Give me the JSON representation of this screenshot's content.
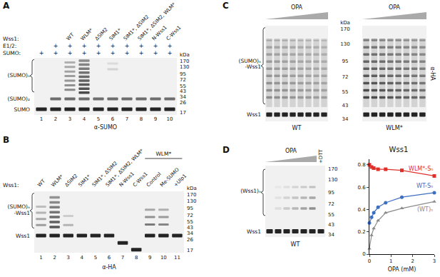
{
  "panels": {
    "A": {
      "label": "A",
      "wss1_label": "Wss1:",
      "wss1": [
        null,
        null,
        "WT",
        "WLM*",
        "ΔSIM2",
        "SIM1*",
        "SIM1*, ΔSIM2",
        "SIM1*, ΔSIM2, WLM*",
        "N-Wss1",
        "C-Wss1"
      ],
      "rows": [
        {
          "label": "E1/2:",
          "marks": [
            null,
            "+",
            "+",
            "+",
            "+",
            "+",
            "+",
            "+",
            "+",
            "+"
          ]
        },
        {
          "label": "SUMO:",
          "marks": [
            "+",
            "+",
            "+",
            "+",
            "+",
            "+",
            "+",
            "+",
            "+",
            "+"
          ]
        }
      ],
      "lanes": [
        1,
        2,
        3,
        4,
        5,
        6,
        7,
        8,
        9,
        10
      ],
      "band_labels": [
        [
          "(SUMO)ₙ"
        ],
        [
          "(SUMO)₂"
        ],
        [
          "SUMO"
        ]
      ],
      "kda_label": "kDa",
      "kda": [
        170,
        130,
        95,
        72,
        55,
        43,
        34,
        26,
        17
      ],
      "antibody": "α-SUMO"
    },
    "B": {
      "label": "B",
      "wss1_label": "Wss1:",
      "wss1": [
        "WT",
        "WLM*",
        "ΔSIM2",
        "SIM1*",
        "SIM1*, ΔSIM2",
        "SIM1*, ΔSIM2, WLM*",
        "N-Wss1",
        "C-Wss1",
        "Control",
        "Me-SUMO",
        "+Ulp1"
      ],
      "group": {
        "label": "WLM*",
        "lanes": [
          9,
          11
        ]
      },
      "lanes": [
        1,
        2,
        3,
        4,
        5,
        6,
        7,
        8,
        9,
        10,
        11
      ],
      "band_labels": [
        [
          "(SUMO)ₙ",
          "-Wss1"
        ],
        [
          "Wss1"
        ]
      ],
      "kda_label": "kDa",
      "kda": [
        170,
        130,
        95,
        72,
        55,
        43,
        34,
        26,
        17
      ],
      "antibody": "α-HA"
    },
    "C": {
      "label": "C",
      "treatment": "OPA",
      "blots": [
        "WT",
        "WLM*"
      ],
      "band_labels": [
        [
          "(SUMO)ₙ",
          "-Wss1"
        ],
        [
          "Wss1"
        ]
      ],
      "kda_label": "kDa",
      "kda": [
        170,
        130,
        95,
        72,
        55,
        43,
        34
      ],
      "antibody": "α-HA"
    },
    "D": {
      "label": "D",
      "treatment": "OPA",
      "extra_lane": "+DTT",
      "blot": "WT",
      "band_labels": [
        [
          "(Wss1)ₙ"
        ],
        [
          "Wss1"
        ]
      ],
      "kda": [
        170,
        130,
        95,
        72,
        55,
        43,
        34
      ]
    }
  },
  "chart_data": {
    "type": "line",
    "title": "Wss1",
    "x_label": "OPA (mM)",
    "x": [
      0,
      0.1,
      0.2,
      0.4,
      0.75,
      1.5,
      3
    ],
    "series": [
      {
        "name": "WLM*-Sₙ",
        "color": "#e0302a",
        "marker": "square",
        "values": [
          0.8,
          0.78,
          0.77,
          0.76,
          0.76,
          0.75,
          0.7
        ]
      },
      {
        "name": "WT-Sₙ",
        "color": "#3d6fc0",
        "marker": "circle",
        "values": [
          0.28,
          0.33,
          0.37,
          0.42,
          0.46,
          0.51,
          0.55
        ]
      },
      {
        "name": "(WT)ₙ",
        "color": "#8a8a8a",
        "marker": "triangle",
        "values": [
          0.05,
          0.17,
          0.23,
          0.3,
          0.37,
          0.41,
          0.47
        ]
      }
    ],
    "xlim": [
      0,
      3
    ],
    "xticks": [
      0,
      1,
      2,
      3
    ],
    "ylim": [
      0,
      0.85
    ],
    "yticks": [
      0,
      0.2,
      0.4,
      0.6,
      0.8
    ],
    "grid": false
  }
}
